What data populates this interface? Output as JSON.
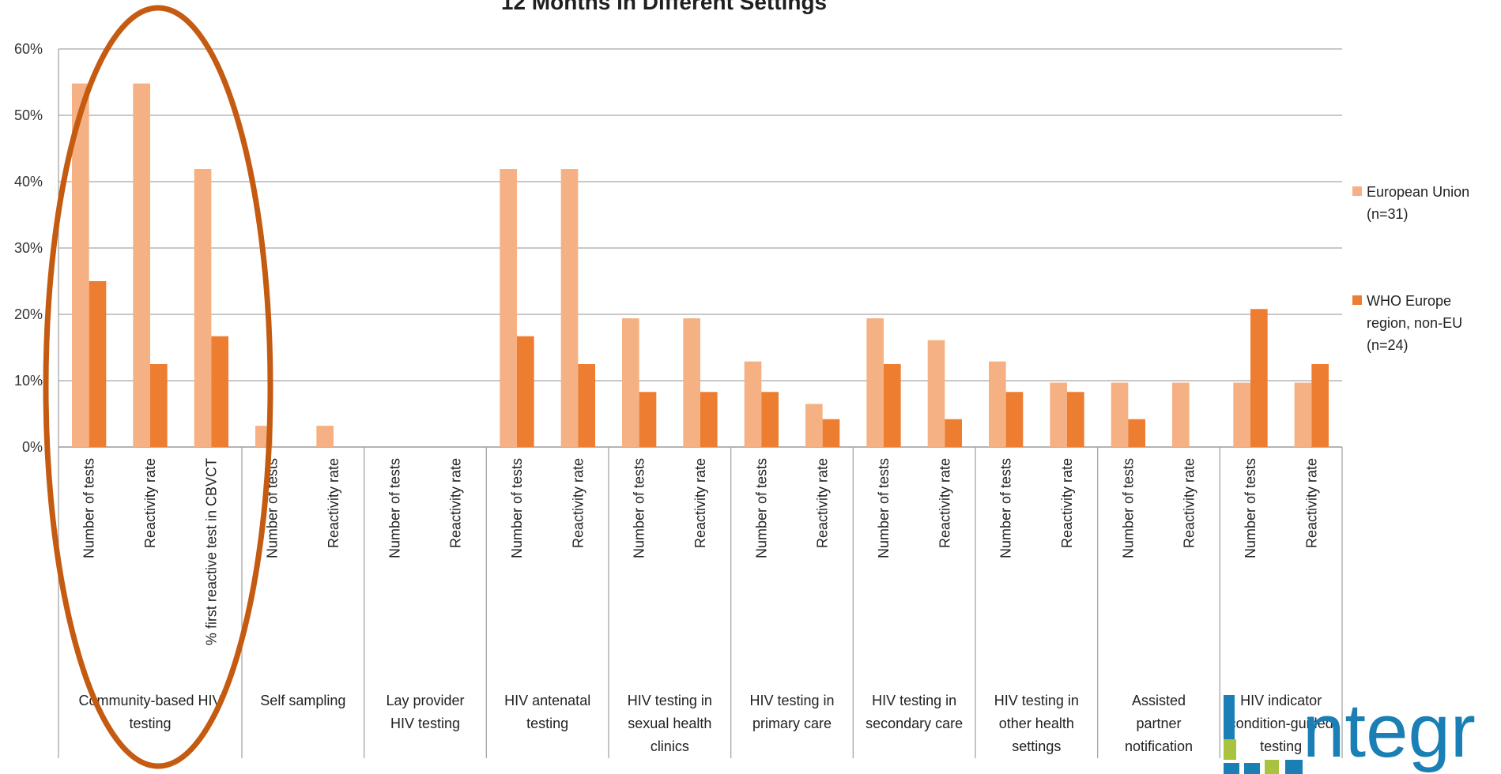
{
  "chart_data": {
    "type": "bar",
    "title": "12 Months in Different Settings",
    "ylim": [
      0,
      60
    ],
    "yticks": [
      "0%",
      "10%",
      "20%",
      "30%",
      "40%",
      "50%",
      "60%"
    ],
    "legend_position": "right",
    "grid": true,
    "groups": [
      {
        "label": "Community-based HIV testing",
        "categories": [
          "Number of tests",
          "Reactivity rate",
          "% first reactive test in CBVCT"
        ]
      },
      {
        "label": "Self sampling",
        "categories": [
          "Number of tests",
          "Reactivity rate"
        ]
      },
      {
        "label": "Lay provider HIV testing",
        "categories": [
          "Number of tests",
          "Reactivity rate"
        ]
      },
      {
        "label": "HIV antenatal testing",
        "categories": [
          "Number of tests",
          "Reactivity rate"
        ]
      },
      {
        "label": "HIV testing in sexual health clinics",
        "categories": [
          "Number of tests",
          "Reactivity rate"
        ]
      },
      {
        "label": "HIV testing in primary care",
        "categories": [
          "Number of tests",
          "Reactivity rate"
        ]
      },
      {
        "label": "HIV testing in secondary care",
        "categories": [
          "Number of tests",
          "Reactivity rate"
        ]
      },
      {
        "label": "HIV testing in other health settings",
        "categories": [
          "Number of tests",
          "Reactivity rate"
        ]
      },
      {
        "label": "Assisted partner notification",
        "categories": [
          "Number of tests",
          "Reactivity rate"
        ]
      },
      {
        "label": "HIV indicator condition-guided testing",
        "categories": [
          "Number of tests",
          "Reactivity rate"
        ]
      }
    ],
    "series": [
      {
        "name": "European Union (n=31)",
        "color": "#f5b183",
        "values": [
          54.8,
          54.8,
          41.9,
          3.2,
          3.2,
          0,
          0,
          41.9,
          41.9,
          19.4,
          19.4,
          12.9,
          6.5,
          19.4,
          16.1,
          12.9,
          9.7,
          9.7,
          9.7,
          9.7,
          9.7
        ]
      },
      {
        "name": "WHO Europe region, non-EU (n=24)",
        "color": "#ed7d31",
        "values": [
          25.0,
          12.5,
          16.7,
          0,
          0,
          0,
          0,
          16.7,
          12.5,
          8.3,
          8.3,
          8.3,
          4.2,
          12.5,
          4.2,
          8.3,
          8.3,
          4.2,
          0,
          20.8,
          12.5
        ]
      }
    ]
  },
  "annotation": {
    "color": "#c55a11"
  },
  "logo": {
    "text": "ntegr"
  }
}
